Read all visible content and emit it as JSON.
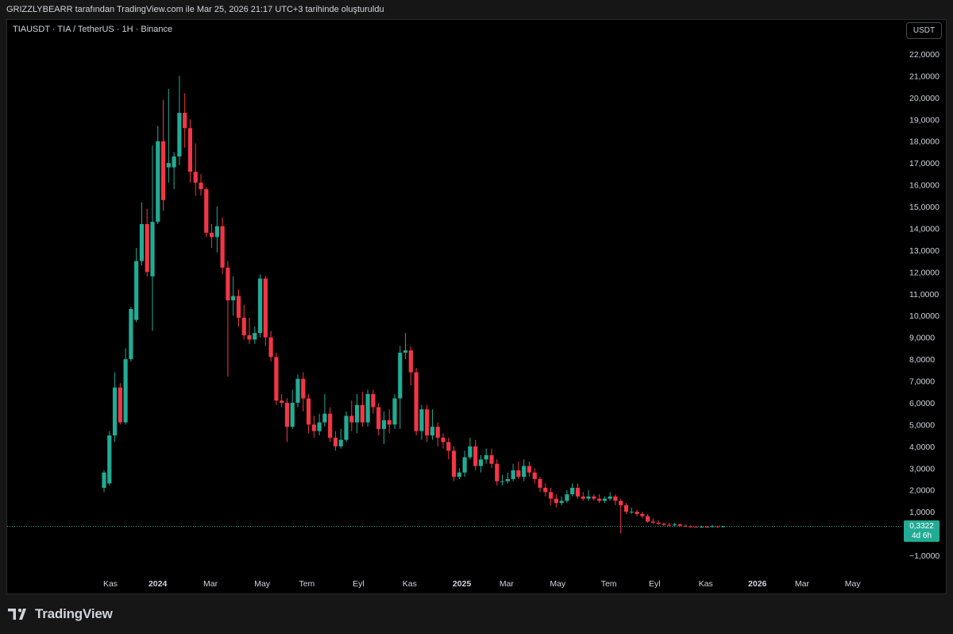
{
  "header": {
    "credit": "GRIZZLYBEARR tarafından TradingView.com ile Mar 25, 2026 21:17 UTC+3 tarihinde oluşturuldu"
  },
  "symbol": {
    "label": "TIAUSDT · TIA / TetherUS · 1H · Binance"
  },
  "currency_button": "USDT",
  "last_price": {
    "value": "0,3322",
    "countdown": "4d 6h"
  },
  "footer": {
    "brand": "TradingView"
  },
  "colors": {
    "up": "#22ab94",
    "down": "#f23645",
    "background": "#000000",
    "frame": "#161616",
    "text": "#d1d4dc"
  },
  "chart_data": {
    "type": "candlestick",
    "title": "TIAUSDT · TIA / TetherUS · 1H · Binance",
    "ylim": [
      -1.5,
      22.5
    ],
    "yticks": [
      {
        "value": 22,
        "label": "22,0000"
      },
      {
        "value": 21,
        "label": "21,0000"
      },
      {
        "value": 20,
        "label": "20,0000"
      },
      {
        "value": 19,
        "label": "19,0000"
      },
      {
        "value": 18,
        "label": "18,0000"
      },
      {
        "value": 17,
        "label": "17,0000"
      },
      {
        "value": 16,
        "label": "16,0000"
      },
      {
        "value": 15,
        "label": "15,0000"
      },
      {
        "value": 14,
        "label": "14,0000"
      },
      {
        "value": 13,
        "label": "13,0000"
      },
      {
        "value": 12,
        "label": "12,0000"
      },
      {
        "value": 11,
        "label": "11,0000"
      },
      {
        "value": 10,
        "label": "10,0000"
      },
      {
        "value": 9,
        "label": "9,0000"
      },
      {
        "value": 8,
        "label": "8,0000"
      },
      {
        "value": 7,
        "label": "7,0000"
      },
      {
        "value": 6,
        "label": "6,0000"
      },
      {
        "value": 5,
        "label": "5,0000"
      },
      {
        "value": 4,
        "label": "4,0000"
      },
      {
        "value": 3,
        "label": "3,0000"
      },
      {
        "value": 2,
        "label": "2,0000"
      },
      {
        "value": 1,
        "label": "1,0000"
      },
      {
        "value": -1,
        "label": "−1,0000"
      }
    ],
    "xticks": [
      {
        "label": "Kas",
        "bold": false,
        "index": 0
      },
      {
        "label": "2024",
        "bold": true,
        "index": 8.8
      },
      {
        "label": "Mar",
        "bold": false,
        "index": 18.6
      },
      {
        "label": "May",
        "bold": false,
        "index": 28.2
      },
      {
        "label": "Tem",
        "bold": false,
        "index": 36.5
      },
      {
        "label": "Eyl",
        "bold": false,
        "index": 46.1
      },
      {
        "label": "Kas",
        "bold": false,
        "index": 55.6
      },
      {
        "label": "2025",
        "bold": true,
        "index": 65.3
      },
      {
        "label": "Mar",
        "bold": false,
        "index": 73.6
      },
      {
        "label": "May",
        "bold": false,
        "index": 83.1
      },
      {
        "label": "Tem",
        "bold": false,
        "index": 92.6
      },
      {
        "label": "Eyl",
        "bold": false,
        "index": 101.1
      },
      {
        "label": "Kas",
        "bold": false,
        "index": 110.6
      },
      {
        "label": "2026",
        "bold": true,
        "index": 120.2
      },
      {
        "label": "Mar",
        "bold": false,
        "index": 128.5
      },
      {
        "label": "May",
        "bold": false,
        "index": 137.9
      }
    ],
    "last_price": 0.3322,
    "candles": [
      [
        2.1,
        2.8,
        2.9,
        1.9
      ],
      [
        2.3,
        4.5,
        4.7,
        2.2
      ],
      [
        4.5,
        6.7,
        7.4,
        4.2
      ],
      [
        6.7,
        5.1,
        6.9,
        5.0
      ],
      [
        5.1,
        8.0,
        8.5,
        5.0
      ],
      [
        8.0,
        10.3,
        10.4,
        7.9
      ],
      [
        9.8,
        12.5,
        13.1,
        9.7
      ],
      [
        12.5,
        14.2,
        15.2,
        12.3
      ],
      [
        14.2,
        12.0,
        14.9,
        11.8
      ],
      [
        11.8,
        14.3,
        17.8,
        9.3
      ],
      [
        14.3,
        18.0,
        18.7,
        14.2
      ],
      [
        18.0,
        15.3,
        19.9,
        14.8
      ],
      [
        16.8,
        17.0,
        20.4,
        16.1
      ],
      [
        16.8,
        17.3,
        17.5,
        15.8
      ],
      [
        17.3,
        19.3,
        21.0,
        16.9
      ],
      [
        19.3,
        18.6,
        20.2,
        17.7
      ],
      [
        18.6,
        16.6,
        19.0,
        16.1
      ],
      [
        16.6,
        16.1,
        17.9,
        15.5
      ],
      [
        16.1,
        15.8,
        16.5,
        15.5
      ],
      [
        15.8,
        13.8,
        15.9,
        13.6
      ],
      [
        13.8,
        13.6,
        14.2,
        13.1
      ],
      [
        13.6,
        14.1,
        15.0,
        12.9
      ],
      [
        14.1,
        12.2,
        14.5,
        11.9
      ],
      [
        12.2,
        10.7,
        12.5,
        7.2
      ],
      [
        10.7,
        10.9,
        11.8,
        10.0
      ],
      [
        10.9,
        9.9,
        11.2,
        9.5
      ],
      [
        9.9,
        9.1,
        10.5,
        8.9
      ],
      [
        9.1,
        8.9,
        9.9,
        8.7
      ],
      [
        8.9,
        9.2,
        9.5,
        8.7
      ],
      [
        9.2,
        11.7,
        11.9,
        9.0
      ],
      [
        11.7,
        9.0,
        11.8,
        8.6
      ],
      [
        9.0,
        8.1,
        9.3,
        7.9
      ],
      [
        8.1,
        6.1,
        8.3,
        5.9
      ],
      [
        6.1,
        6.0,
        6.4,
        5.8
      ],
      [
        6.0,
        4.9,
        6.2,
        4.2
      ],
      [
        4.9,
        6.0,
        6.6,
        4.8
      ],
      [
        6.0,
        7.1,
        7.3,
        5.8
      ],
      [
        7.1,
        6.2,
        7.4,
        5.6
      ],
      [
        6.2,
        5.0,
        6.4,
        4.6
      ],
      [
        5.0,
        4.7,
        5.4,
        4.4
      ],
      [
        4.7,
        5.1,
        5.5,
        4.5
      ],
      [
        5.1,
        5.5,
        6.4,
        4.9
      ],
      [
        5.5,
        4.4,
        5.8,
        4.2
      ],
      [
        4.4,
        4.0,
        4.7,
        3.8
      ],
      [
        4.0,
        4.3,
        4.8,
        3.9
      ],
      [
        4.3,
        5.4,
        5.6,
        4.2
      ],
      [
        5.4,
        5.1,
        6.1,
        4.7
      ],
      [
        5.1,
        5.9,
        6.4,
        4.6
      ],
      [
        5.9,
        5.1,
        6.5,
        4.9
      ],
      [
        5.1,
        6.4,
        6.6,
        4.9
      ],
      [
        6.4,
        5.8,
        6.6,
        5.5
      ],
      [
        5.8,
        4.8,
        6.0,
        4.5
      ],
      [
        4.8,
        5.2,
        5.6,
        4.1
      ],
      [
        5.2,
        5.0,
        5.7,
        4.6
      ],
      [
        5.0,
        6.2,
        6.4,
        4.8
      ],
      [
        6.2,
        8.3,
        8.6,
        4.8
      ],
      [
        8.3,
        8.4,
        9.2,
        8.0
      ],
      [
        8.4,
        7.4,
        8.6,
        6.8
      ],
      [
        7.4,
        4.7,
        7.6,
        4.5
      ],
      [
        4.7,
        5.7,
        5.9,
        4.3
      ],
      [
        5.7,
        4.5,
        5.9,
        4.2
      ],
      [
        4.5,
        4.9,
        5.7,
        4.3
      ],
      [
        4.9,
        4.4,
        5.1,
        4.0
      ],
      [
        4.4,
        4.2,
        4.6,
        3.9
      ],
      [
        4.2,
        3.8,
        4.4,
        3.4
      ],
      [
        3.8,
        2.6,
        4.0,
        2.4
      ],
      [
        2.6,
        2.8,
        3.0,
        2.5
      ],
      [
        2.8,
        3.5,
        3.8,
        2.6
      ],
      [
        3.5,
        4.0,
        4.4,
        3.4
      ],
      [
        4.0,
        3.1,
        4.3,
        2.9
      ],
      [
        3.1,
        3.4,
        3.6,
        2.8
      ],
      [
        3.4,
        3.6,
        3.9,
        3.2
      ],
      [
        3.6,
        3.2,
        3.9,
        3.0
      ],
      [
        3.2,
        2.4,
        3.4,
        2.2
      ],
      [
        2.4,
        2.4,
        2.7,
        2.2
      ],
      [
        2.4,
        2.5,
        2.8,
        2.3
      ],
      [
        2.5,
        2.9,
        3.2,
        2.4
      ],
      [
        2.9,
        2.6,
        3.3,
        2.5
      ],
      [
        2.6,
        3.1,
        3.4,
        2.4
      ],
      [
        3.1,
        2.8,
        3.3,
        2.6
      ],
      [
        2.8,
        2.5,
        3.0,
        2.3
      ],
      [
        2.5,
        2.1,
        2.6,
        1.9
      ],
      [
        2.1,
        1.9,
        2.3,
        1.7
      ],
      [
        1.9,
        1.6,
        2.1,
        1.3
      ],
      [
        1.6,
        1.4,
        1.8,
        1.2
      ],
      [
        1.4,
        1.5,
        1.7,
        1.3
      ],
      [
        1.5,
        1.8,
        2.0,
        1.4
      ],
      [
        1.8,
        2.1,
        2.3,
        1.7
      ],
      [
        2.1,
        1.7,
        2.3,
        1.6
      ],
      [
        1.7,
        1.6,
        1.9,
        1.5
      ],
      [
        1.6,
        1.7,
        2.0,
        1.5
      ],
      [
        1.7,
        1.6,
        1.8,
        1.5
      ],
      [
        1.6,
        1.5,
        1.8,
        1.4
      ],
      [
        1.5,
        1.6,
        1.7,
        1.4
      ],
      [
        1.6,
        1.7,
        1.9,
        1.5
      ],
      [
        1.7,
        1.5,
        1.8,
        1.3
      ],
      [
        1.5,
        1.3,
        1.6,
        0.0
      ],
      [
        1.3,
        1.0,
        1.4,
        0.9
      ],
      [
        1.0,
        1.0,
        1.2,
        0.9
      ],
      [
        1.0,
        0.9,
        1.1,
        0.8
      ],
      [
        0.9,
        0.8,
        1.0,
        0.7
      ],
      [
        0.8,
        0.55,
        0.9,
        0.5
      ],
      [
        0.55,
        0.5,
        0.7,
        0.45
      ],
      [
        0.5,
        0.45,
        0.6,
        0.4
      ],
      [
        0.45,
        0.4,
        0.5,
        0.35
      ],
      [
        0.4,
        0.38,
        0.5,
        0.33
      ],
      [
        0.38,
        0.42,
        0.5,
        0.35
      ],
      [
        0.42,
        0.36,
        0.45,
        0.3
      ],
      [
        0.36,
        0.33,
        0.42,
        0.3
      ],
      [
        0.33,
        0.32,
        0.38,
        0.28
      ],
      [
        0.32,
        0.3,
        0.35,
        0.27
      ],
      [
        0.3,
        0.31,
        0.36,
        0.27
      ],
      [
        0.31,
        0.3,
        0.35,
        0.27
      ],
      [
        0.3,
        0.33,
        0.4,
        0.28
      ],
      [
        0.33,
        0.3,
        0.36,
        0.27
      ],
      [
        0.3,
        0.3322,
        0.36,
        0.28
      ]
    ]
  }
}
